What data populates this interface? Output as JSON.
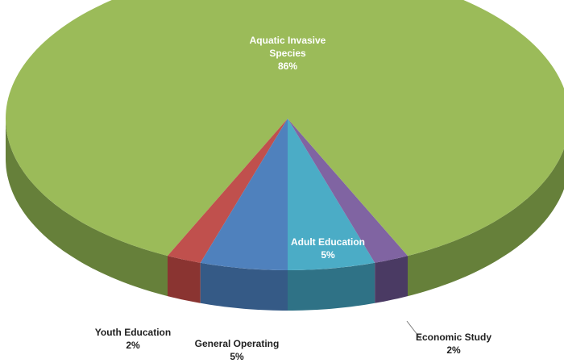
{
  "chart_data": {
    "type": "pie3d",
    "categories": [
      "Adult Education",
      "Economic Study",
      "Aquatic Invasive Species",
      "Youth Education",
      "General Operating"
    ],
    "values": [
      5,
      2,
      86,
      2,
      5
    ],
    "value_labels": [
      "5%",
      "2%",
      "86%",
      "2%",
      "5%"
    ],
    "colors": [
      "#4bacc6",
      "#8064a2",
      "#9bbb59",
      "#c0504d",
      "#4f81bd"
    ],
    "side_colors": [
      "#2f7286",
      "#4a3a63",
      "#66803a",
      "#8a3431",
      "#355a86"
    ]
  }
}
